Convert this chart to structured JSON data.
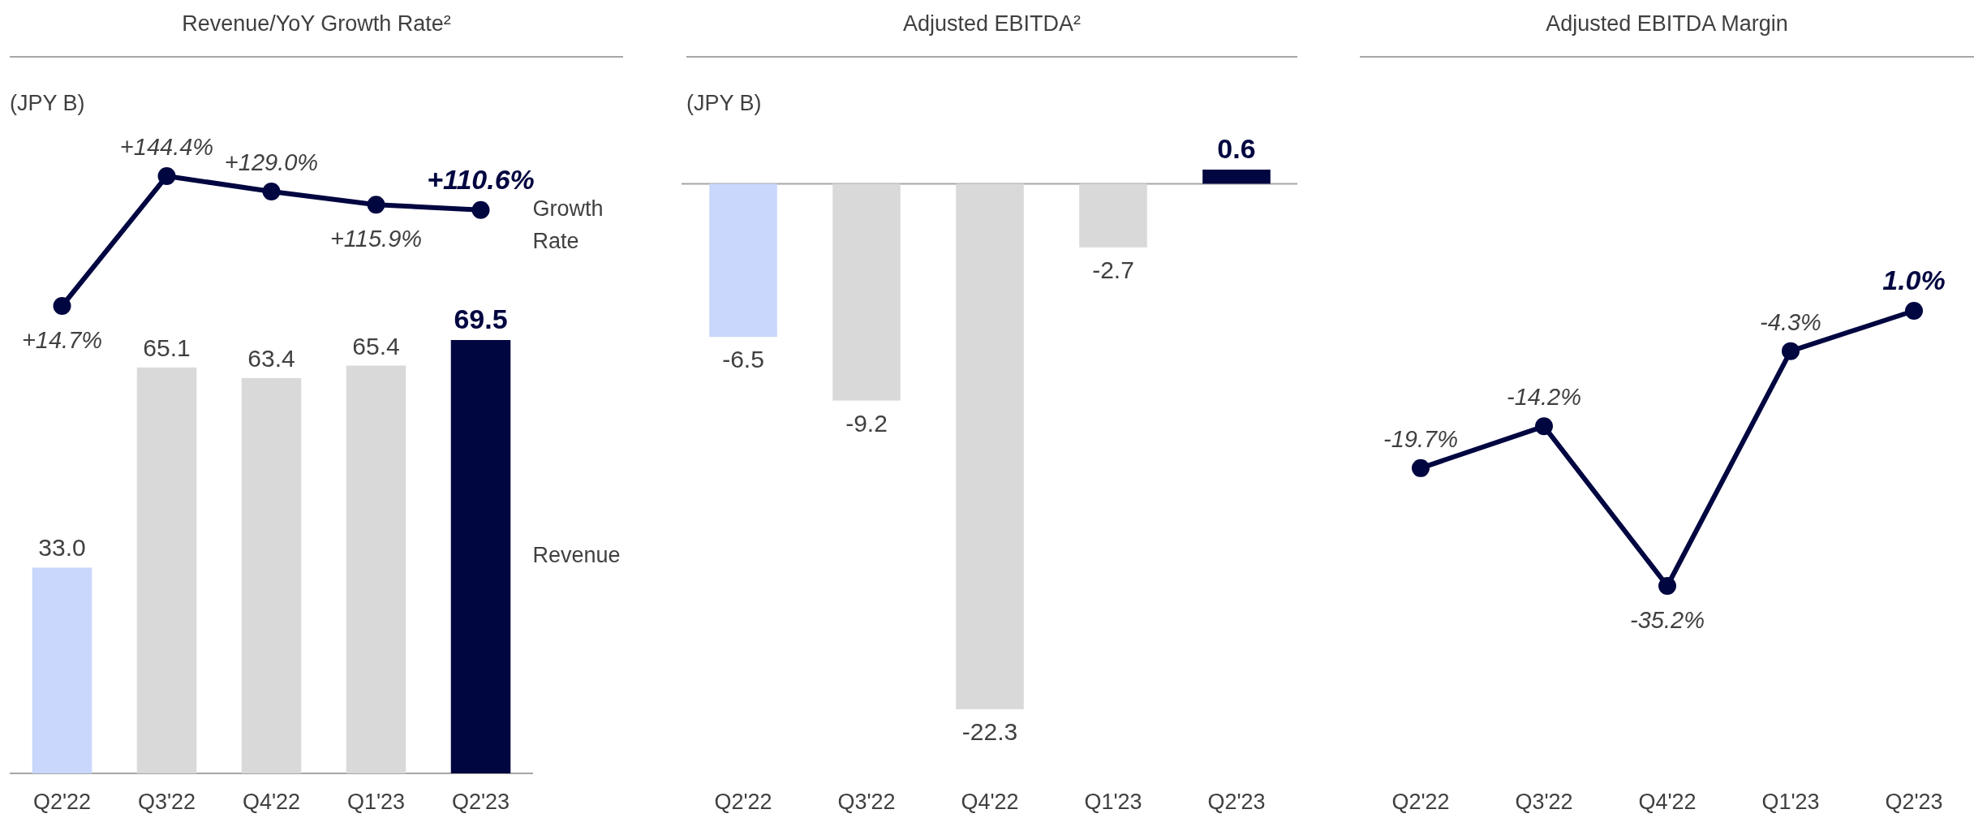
{
  "chart_data": [
    {
      "type": "line",
      "title": "Revenue/YoY Growth Rate²",
      "annotations": [
        "(JPY B)"
      ],
      "categories": [
        null,
        null,
        null,
        null,
        null
      ],
      "marker": "circle",
      "series": [
        {
          "name": "Growth Rate",
          "color": "#000640",
          "values": [
            14.7,
            144.4,
            129.0,
            115.9,
            110.6
          ],
          "value_labels": [
            "+14.7%",
            "+144.4%",
            "+129.0%",
            "+115.9%",
            "+110.6%"
          ]
        }
      ]
    },
    {
      "type": "bar",
      "categories": [
        "Q2'22",
        "Q3'22",
        "Q4'22",
        "Q1'23",
        "Q2'23"
      ],
      "series": [
        {
          "name": "Revenue",
          "colors": [
            "#c9d7fd",
            "#d9d9d9",
            "#d9d9d9",
            "#d9d9d9",
            "#000640"
          ],
          "values": [
            33.0,
            65.1,
            63.4,
            65.4,
            69.5
          ],
          "value_labels": [
            "33.0",
            "65.1",
            "63.4",
            "65.4",
            "69.5"
          ]
        }
      ]
    },
    {
      "type": "bar",
      "title": "Adjusted EBITDA²",
      "ylabel": "(JPY B)",
      "categories": [
        "Q2'22",
        "Q3'22",
        "Q4'22",
        "Q1'23",
        "Q2'23"
      ],
      "colors": [
        "#c9d7fd",
        "#d9d9d9",
        "#d9d9d9",
        "#d9d9d9",
        "#000640"
      ],
      "values": [
        -6.5,
        -9.2,
        -22.3,
        -2.7,
        0.6
      ],
      "value_labels": [
        "-6.5",
        "-9.2",
        "-22.3",
        "-2.7",
        "0.6"
      ]
    },
    {
      "type": "line",
      "title": "Adjusted EBITDA Margin",
      "categories": [
        "Q2'22",
        "Q3'22",
        "Q4'22",
        "Q1'23",
        "Q2'23"
      ],
      "marker": "circle",
      "color": "#000640",
      "values": [
        -19.7,
        -14.2,
        -35.2,
        -4.3,
        1.0
      ],
      "value_labels": [
        "-19.7%",
        "-14.2%",
        "-35.2%",
        "-4.3%",
        "1.0%"
      ]
    }
  ]
}
